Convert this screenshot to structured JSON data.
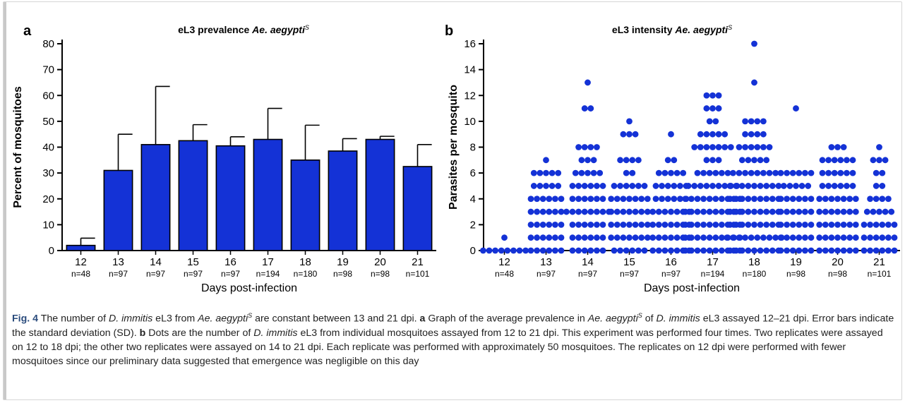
{
  "chart_data": [
    {
      "type": "bar",
      "panel": "a",
      "title": "eL3 prevalence ",
      "title_italic": "Ae. aegypti",
      "title_sup": "S",
      "xlabel": "Days post-infection",
      "ylabel": "Percent of mosquitoes",
      "ylim": [
        0,
        80
      ],
      "yticks": [
        0,
        10,
        20,
        30,
        40,
        50,
        60,
        70,
        80
      ],
      "categories": [
        "12",
        "13",
        "14",
        "15",
        "16",
        "17",
        "18",
        "19",
        "20",
        "21"
      ],
      "n_labels": [
        "n=48",
        "n=97",
        "n=97",
        "n=97",
        "n=97",
        "n=194",
        "n=180",
        "n=98",
        "n=98",
        "n=101"
      ],
      "values": [
        2,
        31,
        41,
        42.5,
        40.5,
        43,
        35,
        38.5,
        43,
        32.5
      ],
      "sd": [
        2.8,
        14,
        22.5,
        6.2,
        3.5,
        12,
        13.5,
        4.8,
        1.2,
        8.5
      ],
      "bar_color": "#1432d6"
    },
    {
      "type": "scatter",
      "panel": "b",
      "title": "eL3 intensity ",
      "title_italic": "Ae. aegypti",
      "title_sup": "S",
      "xlabel": "Days post-infection",
      "ylabel": "Parasites per mosquito",
      "ylim": [
        0,
        16
      ],
      "yticks": [
        0,
        2,
        4,
        6,
        8,
        10,
        12,
        14,
        16
      ],
      "categories": [
        "12",
        "13",
        "14",
        "15",
        "16",
        "17",
        "18",
        "19",
        "20",
        "21"
      ],
      "n_labels": [
        "n=48",
        "n=97",
        "n=97",
        "n=97",
        "n=97",
        "n=194",
        "n=180",
        "n=98",
        "n=98",
        "n=101"
      ],
      "dot_color": "#1432d6",
      "groups": [
        {
          "day": "12",
          "max_value": 1
        },
        {
          "day": "13",
          "max_value": 7
        },
        {
          "day": "14",
          "max_value": 13
        },
        {
          "day": "15",
          "max_value": 10
        },
        {
          "day": "16",
          "max_value": 9
        },
        {
          "day": "17",
          "max_value": 12
        },
        {
          "day": "18",
          "max_value": 16
        },
        {
          "day": "19",
          "max_value": 11
        },
        {
          "day": "20",
          "max_value": 8
        },
        {
          "day": "21",
          "max_value": 8
        }
      ]
    }
  ],
  "caption": {
    "fig_label": "Fig. 4",
    "segments": [
      {
        "t": "  The number of ",
        "s": "n"
      },
      {
        "t": "D. immitis",
        "s": "i"
      },
      {
        "t": " eL3 from ",
        "s": "n"
      },
      {
        "t": "Ae. aegypti",
        "s": "i"
      },
      {
        "t": "S",
        "s": "sup"
      },
      {
        "t": " are constant between 13 and 21 dpi. ",
        "s": "n"
      },
      {
        "t": "a",
        "s": "b"
      },
      {
        "t": " Graph of the average prevalence in ",
        "s": "n"
      },
      {
        "t": "Ae. aegypti",
        "s": "i"
      },
      {
        "t": "S",
        "s": "sup"
      },
      {
        "t": " of ",
        "s": "n"
      },
      {
        "t": "D. immitis",
        "s": "i"
      },
      {
        "t": " eL3 assayed 12–21 dpi. Error bars indicate the standard deviation (SD). ",
        "s": "n"
      },
      {
        "t": "b",
        "s": "b"
      },
      {
        "t": " Dots are the number of ",
        "s": "n"
      },
      {
        "t": "D. immitis",
        "s": "i"
      },
      {
        "t": " eL3 from individual mosquitoes assayed from 12 to 21 dpi. This experiment was performed four times. Two replicates were assayed on 12 to 18 dpi; the other two replicates were assayed on 14 to 21 dpi. Each replicate was performed with approximately 50 mosquitoes. The replicates on 12 dpi were performed with fewer mosquitoes since our preliminary data suggested that emergence was negligible on this day",
        "s": "n"
      }
    ]
  }
}
